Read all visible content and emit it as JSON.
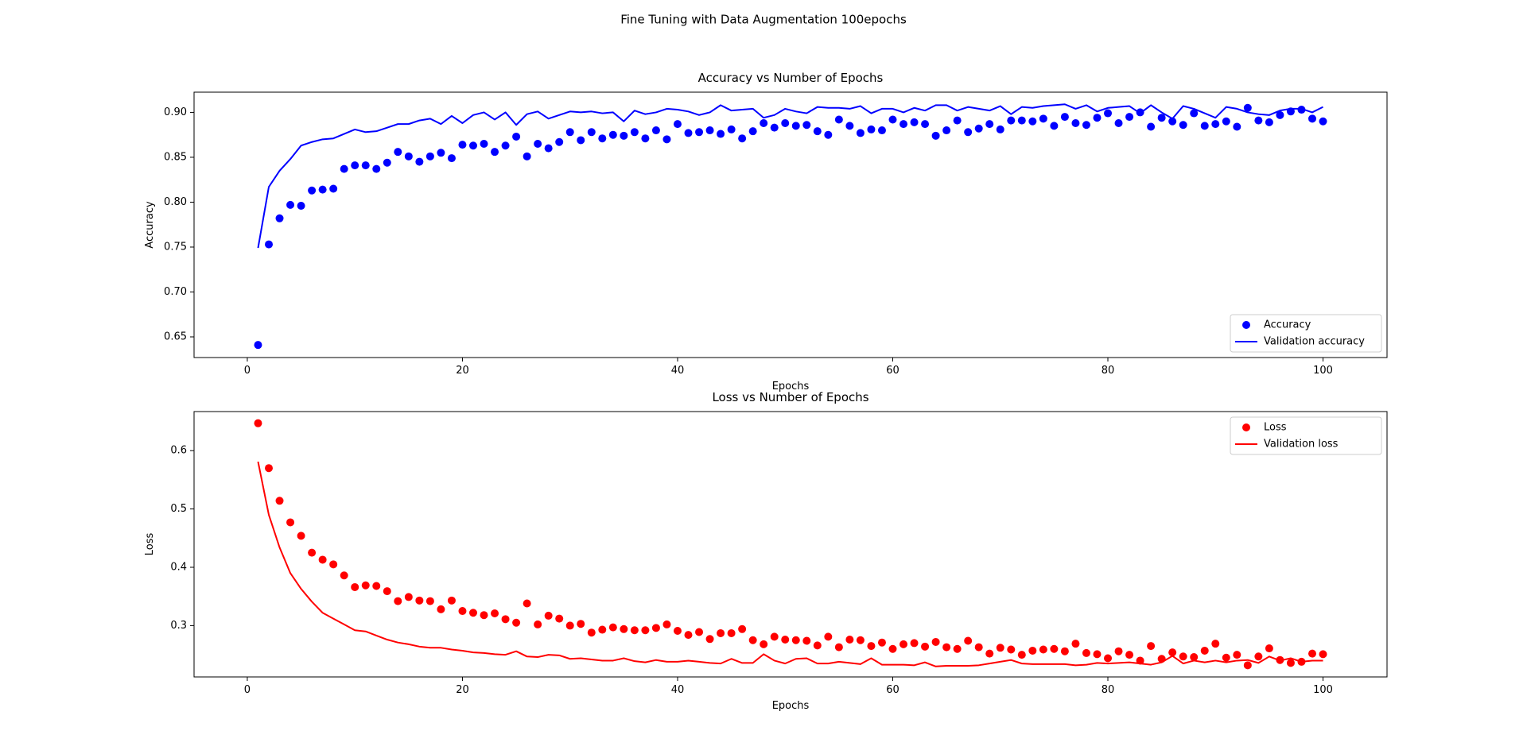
{
  "figure": {
    "suptitle": "Fine Tuning with Data Augmentation 100epochs"
  },
  "chart_data": [
    {
      "type": "scatter",
      "title": "Accuracy vs Number of Epochs",
      "xlabel": "Epochs",
      "ylabel": "Accuracy",
      "xlim": [
        -4.95,
        105.95
      ],
      "ylim": [
        0.627,
        0.9225
      ],
      "xticks": [
        0,
        20,
        40,
        60,
        80,
        100
      ],
      "yticks": [
        0.65,
        0.7,
        0.75,
        0.8,
        0.85,
        0.9
      ],
      "ytick_decimals": 2,
      "grid": false,
      "legend_position": "lower-right",
      "series": [
        {
          "name": "Accuracy",
          "kind": "scatter",
          "color": "#0000ff",
          "values": [
            0.641,
            0.753,
            0.782,
            0.797,
            0.796,
            0.813,
            0.814,
            0.815,
            0.837,
            0.841,
            0.841,
            0.837,
            0.844,
            0.856,
            0.851,
            0.845,
            0.851,
            0.855,
            0.849,
            0.864,
            0.863,
            0.865,
            0.856,
            0.863,
            0.873,
            0.851,
            0.865,
            0.86,
            0.867,
            0.878,
            0.869,
            0.878,
            0.871,
            0.875,
            0.874,
            0.878,
            0.871,
            0.88,
            0.87,
            0.887,
            0.877,
            0.878,
            0.88,
            0.876,
            0.881,
            0.871,
            0.879,
            0.888,
            0.883,
            0.888,
            0.885,
            0.886,
            0.879,
            0.875,
            0.892,
            0.885,
            0.877,
            0.881,
            0.88,
            0.892,
            0.887,
            0.889,
            0.887,
            0.874,
            0.88,
            0.891,
            0.878,
            0.882,
            0.887,
            0.881,
            0.891,
            0.891,
            0.89,
            0.893,
            0.885,
            0.895,
            0.888,
            0.886,
            0.894,
            0.899,
            0.888,
            0.895,
            0.9,
            0.884,
            0.894,
            0.89,
            0.886,
            0.899,
            0.885,
            0.887,
            0.89,
            0.884,
            0.905,
            0.891,
            0.889,
            0.897,
            0.901,
            0.903,
            0.893,
            0.89
          ]
        },
        {
          "name": "Validation accuracy",
          "kind": "line",
          "color": "#0000ff",
          "values": [
            0.749,
            0.817,
            0.835,
            0.848,
            0.863,
            0.867,
            0.87,
            0.871,
            0.876,
            0.881,
            0.878,
            0.879,
            0.883,
            0.887,
            0.887,
            0.891,
            0.893,
            0.887,
            0.896,
            0.888,
            0.897,
            0.9,
            0.892,
            0.9,
            0.886,
            0.898,
            0.901,
            0.893,
            0.897,
            0.901,
            0.9,
            0.901,
            0.899,
            0.9,
            0.89,
            0.902,
            0.898,
            0.9,
            0.904,
            0.903,
            0.901,
            0.897,
            0.9,
            0.908,
            0.902,
            0.903,
            0.904,
            0.894,
            0.897,
            0.904,
            0.901,
            0.899,
            0.906,
            0.905,
            0.905,
            0.904,
            0.907,
            0.899,
            0.904,
            0.904,
            0.9,
            0.905,
            0.902,
            0.908,
            0.908,
            0.902,
            0.906,
            0.904,
            0.902,
            0.907,
            0.898,
            0.906,
            0.905,
            0.907,
            0.908,
            0.909,
            0.904,
            0.908,
            0.901,
            0.905,
            0.906,
            0.907,
            0.899,
            0.908,
            0.9,
            0.893,
            0.907,
            0.904,
            0.899,
            0.894,
            0.906,
            0.904,
            0.9,
            0.898,
            0.897,
            0.902,
            0.904,
            0.904,
            0.9,
            0.906
          ]
        }
      ]
    },
    {
      "type": "scatter",
      "title": "Loss vs Number of Epochs",
      "xlabel": "Epochs",
      "ylabel": "Loss",
      "xlim": [
        -4.95,
        105.95
      ],
      "ylim": [
        0.212,
        0.667
      ],
      "xticks": [
        0,
        20,
        40,
        60,
        80,
        100
      ],
      "yticks": [
        0.3,
        0.4,
        0.5,
        0.6
      ],
      "ytick_decimals": 1,
      "grid": false,
      "legend_position": "upper-right",
      "series": [
        {
          "name": "Loss",
          "kind": "scatter",
          "color": "#ff0000",
          "values": [
            0.647,
            0.57,
            0.514,
            0.477,
            0.454,
            0.425,
            0.413,
            0.405,
            0.386,
            0.366,
            0.369,
            0.368,
            0.359,
            0.342,
            0.349,
            0.343,
            0.342,
            0.328,
            0.343,
            0.325,
            0.322,
            0.318,
            0.321,
            0.311,
            0.305,
            0.338,
            0.302,
            0.317,
            0.312,
            0.3,
            0.303,
            0.288,
            0.293,
            0.297,
            0.294,
            0.292,
            0.292,
            0.296,
            0.302,
            0.291,
            0.284,
            0.289,
            0.277,
            0.287,
            0.287,
            0.294,
            0.275,
            0.268,
            0.281,
            0.276,
            0.275,
            0.274,
            0.266,
            0.281,
            0.263,
            0.276,
            0.275,
            0.265,
            0.271,
            0.26,
            0.268,
            0.27,
            0.264,
            0.272,
            0.263,
            0.26,
            0.274,
            0.263,
            0.252,
            0.262,
            0.259,
            0.25,
            0.257,
            0.259,
            0.26,
            0.256,
            0.269,
            0.253,
            0.251,
            0.244,
            0.256,
            0.25,
            0.24,
            0.265,
            0.243,
            0.254,
            0.247,
            0.246,
            0.257,
            0.269,
            0.245,
            0.25,
            0.232,
            0.247,
            0.261,
            0.241,
            0.236,
            0.238,
            0.252,
            0.251
          ]
        },
        {
          "name": "Validation loss",
          "kind": "line",
          "color": "#ff0000",
          "values": [
            0.581,
            0.49,
            0.434,
            0.39,
            0.363,
            0.341,
            0.322,
            0.312,
            0.302,
            0.292,
            0.29,
            0.283,
            0.276,
            0.271,
            0.268,
            0.264,
            0.262,
            0.262,
            0.259,
            0.257,
            0.254,
            0.253,
            0.251,
            0.25,
            0.256,
            0.247,
            0.246,
            0.25,
            0.249,
            0.243,
            0.244,
            0.242,
            0.24,
            0.24,
            0.244,
            0.239,
            0.237,
            0.241,
            0.238,
            0.238,
            0.24,
            0.238,
            0.236,
            0.235,
            0.243,
            0.236,
            0.236,
            0.251,
            0.24,
            0.235,
            0.243,
            0.244,
            0.235,
            0.235,
            0.238,
            0.236,
            0.234,
            0.244,
            0.233,
            0.233,
            0.233,
            0.232,
            0.237,
            0.23,
            0.231,
            0.231,
            0.231,
            0.232,
            0.235,
            0.238,
            0.241,
            0.235,
            0.234,
            0.234,
            0.234,
            0.234,
            0.232,
            0.233,
            0.236,
            0.235,
            0.236,
            0.237,
            0.235,
            0.233,
            0.237,
            0.248,
            0.235,
            0.24,
            0.237,
            0.24,
            0.237,
            0.24,
            0.241,
            0.236,
            0.247,
            0.24,
            0.244,
            0.238,
            0.24,
            0.24
          ]
        }
      ]
    }
  ]
}
